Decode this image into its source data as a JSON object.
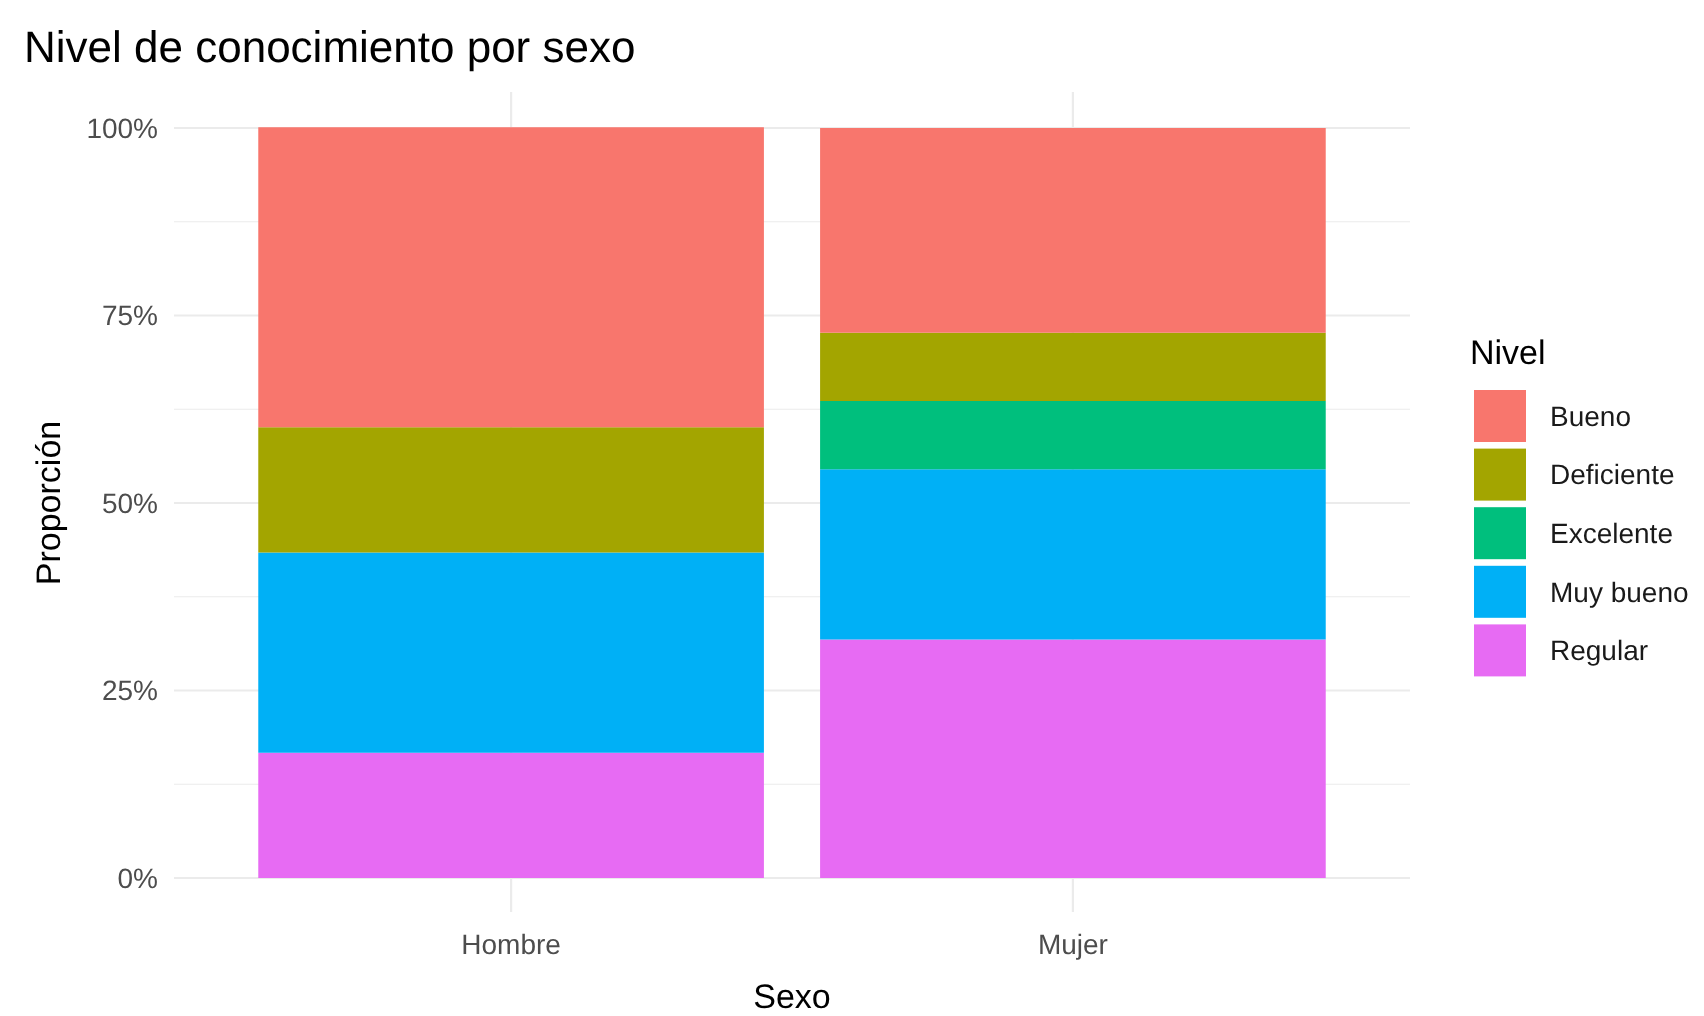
{
  "chart_data": {
    "type": "bar",
    "title": "Nivel de conocimiento por sexo",
    "xlabel": "Sexo",
    "ylabel": "Proporción",
    "legend_title": "Nivel",
    "categories": [
      "Hombre",
      "Mujer"
    ],
    "stacked": true,
    "series": [
      {
        "name": "Regular",
        "color": "#e76bf3",
        "values": [
          0.167,
          0.318
        ]
      },
      {
        "name": "Muy bueno",
        "color": "#00b0f6",
        "values": [
          0.267,
          0.227
        ]
      },
      {
        "name": "Excelente",
        "color": "#00bf7d",
        "values": [
          null,
          0.091
        ]
      },
      {
        "name": "Deficiente",
        "color": "#a3a500",
        "values": [
          0.167,
          0.091
        ]
      },
      {
        "name": "Bueno",
        "color": "#f8766d",
        "values": [
          0.4,
          0.273
        ]
      }
    ],
    "ylim": [
      0,
      1
    ],
    "yticks": [
      {
        "value": 0,
        "label": "0%"
      },
      {
        "value": 0.25,
        "label": "25%"
      },
      {
        "value": 0.5,
        "label": "50%"
      },
      {
        "value": 0.75,
        "label": "75%"
      },
      {
        "value": 1,
        "label": "100%"
      }
    ],
    "grid": true,
    "legend": "right"
  }
}
